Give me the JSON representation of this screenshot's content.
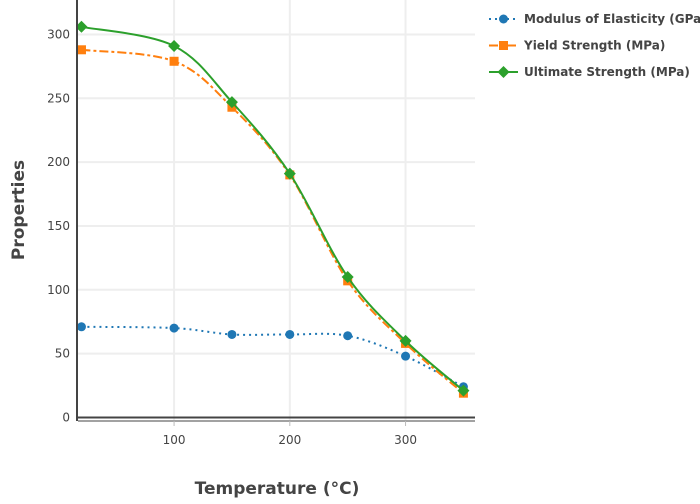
{
  "chart_data": {
    "type": "line",
    "title": "",
    "xlabel": "Temperature (°C)",
    "ylabel": "Properties",
    "xlim": [
      17,
      360
    ],
    "ylim": [
      -2,
      327
    ],
    "xticks": [
      100,
      200,
      300
    ],
    "yticks": [
      0,
      50,
      100,
      150,
      200,
      250,
      300
    ],
    "grid": true,
    "legend_position": "top-right",
    "x": [
      20,
      100,
      150,
      200,
      250,
      300,
      350
    ],
    "series": [
      {
        "name": "Modulus of Elasticity (GPa)",
        "values": [
          71,
          70,
          65,
          65,
          64,
          48,
          24
        ],
        "color": "#1f77b4",
        "dash": "dot",
        "marker": "circle"
      },
      {
        "name": "Yield Strength (MPa)",
        "values": [
          288,
          279,
          243,
          190,
          107,
          58,
          19
        ],
        "color": "#ff7f0e",
        "dash": "dashdot",
        "marker": "square"
      },
      {
        "name": "Ultimate Strength (MPa)",
        "values": [
          306,
          291,
          247,
          191,
          110,
          60,
          21
        ],
        "color": "#2ca02c",
        "dash": "solid",
        "marker": "diamond"
      }
    ]
  }
}
